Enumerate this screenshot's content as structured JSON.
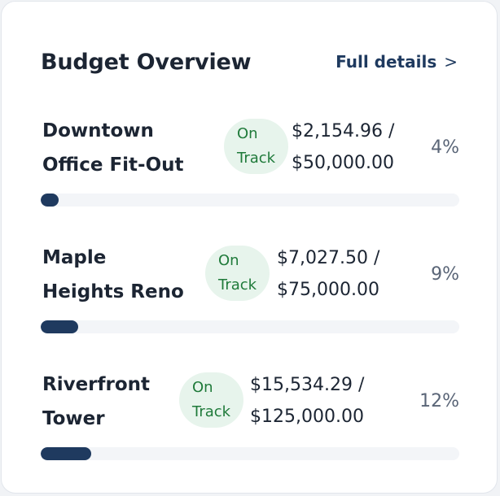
{
  "card": {
    "title": "Budget Overview",
    "details_label": "Full details",
    "details_chevron": ">"
  },
  "projects": [
    {
      "name_line1": "Downtown",
      "name_line2": "Office Fit-Out",
      "status_line1": "On",
      "status_line2": "Track",
      "spent": "$2,154.96 /",
      "budget": "$50,000.00",
      "percent": "4%",
      "progress": 0.04
    },
    {
      "name_line1": "Maple",
      "name_line2": "Heights Reno",
      "status_line1": "On",
      "status_line2": "Track",
      "spent": "$7,027.50 /",
      "budget": "$75,000.00",
      "percent": "9%",
      "progress": 0.09
    },
    {
      "name_line1": "Riverfront",
      "name_line2": "Tower",
      "status_line1": "On",
      "status_line2": "Track",
      "spent": "$15,534.29 /",
      "budget": "$125,000.00",
      "percent": "12%",
      "progress": 0.12
    }
  ],
  "colors": {
    "accent": "#1f3a5f",
    "badge_bg": "#e7f4ec",
    "badge_text": "#1f7a3a",
    "track": "#f3f5f8"
  }
}
